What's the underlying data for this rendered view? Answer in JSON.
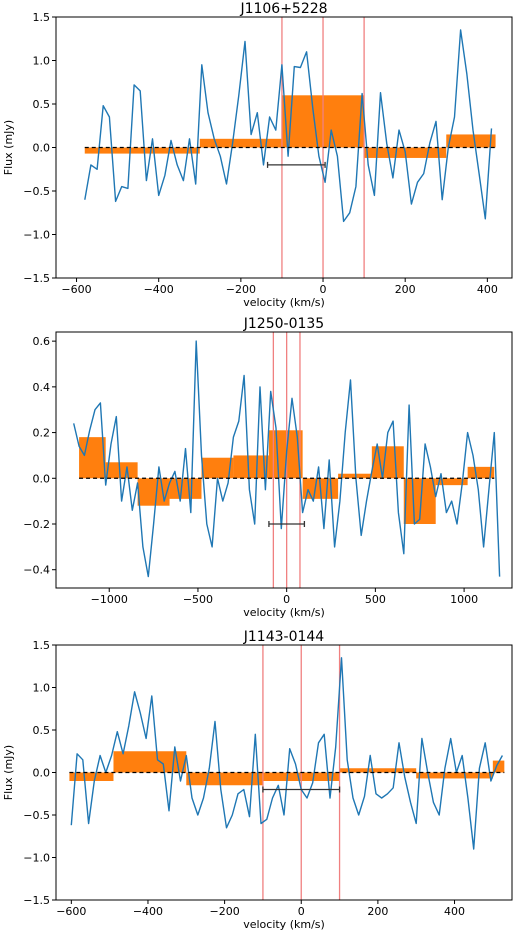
{
  "chart_data": [
    {
      "type": "line",
      "title": "J1106+5228",
      "xlabel": "velocity (km/s)",
      "ylabel": "Flux (mJy)",
      "xlim": [
        -650,
        460
      ],
      "ylim": [
        -1.5,
        1.5
      ],
      "xticks": [
        -600,
        -400,
        -200,
        0,
        200,
        400
      ],
      "xtick_labels": [
        "−600",
        "−400",
        "−200",
        "0",
        "200",
        "400"
      ],
      "yticks": [
        -1.5,
        -1.0,
        -0.5,
        0.0,
        0.5,
        1.0,
        1.5
      ],
      "ytick_labels": [
        "−1.5",
        "−1.0",
        "−0.5",
        "0.0",
        "0.5",
        "1.0",
        "1.5"
      ],
      "series": [
        {
          "style": "line",
          "color": "#1f77b4",
          "x": [
            -580,
            -565,
            -550,
            -535,
            -520,
            -505,
            -490,
            -475,
            -460,
            -445,
            -430,
            -415,
            -400,
            -385,
            -370,
            -355,
            -340,
            -325,
            -310,
            -295,
            -280,
            -265,
            -250,
            -235,
            -220,
            -205,
            -190,
            -175,
            -160,
            -145,
            -130,
            -115,
            -100,
            -85,
            -70,
            -55,
            -40,
            -25,
            -10,
            5,
            20,
            35,
            50,
            65,
            80,
            95,
            110,
            125,
            140,
            155,
            170,
            185,
            200,
            215,
            230,
            245,
            260,
            275,
            290,
            305,
            320,
            335,
            350,
            365,
            380,
            395,
            410
          ],
          "y": [
            -0.6,
            -0.2,
            -0.25,
            0.48,
            0.35,
            -0.62,
            -0.45,
            -0.47,
            0.72,
            0.65,
            -0.38,
            0.1,
            -0.55,
            -0.32,
            0.08,
            -0.2,
            -0.38,
            0.1,
            -0.42,
            0.95,
            0.4,
            0.1,
            -0.1,
            -0.42,
            0.05,
            0.6,
            1.22,
            0.15,
            0.4,
            -0.2,
            0.35,
            0.2,
            0.95,
            -0.1,
            0.93,
            0.92,
            1.1,
            0.45,
            -0.1,
            -0.4,
            0.2,
            -0.1,
            -0.85,
            -0.75,
            -0.45,
            0.62,
            -0.2,
            -0.55,
            0.63,
            0.05,
            -0.35,
            0.2,
            -0.05,
            -0.65,
            -0.4,
            -0.3,
            0.05,
            0.3,
            -0.6,
            0.0,
            0.35,
            1.35,
            0.85,
            0.2,
            -0.3,
            -0.82,
            0.22
          ]
        },
        {
          "style": "step-bar",
          "color": "#ff7f0e",
          "bins": [
            [
              -580,
              -300,
              -0.07
            ],
            [
              -300,
              -100,
              0.1
            ],
            [
              -100,
              100,
              0.6
            ],
            [
              100,
              300,
              -0.12
            ],
            [
              300,
              420,
              0.15
            ]
          ]
        }
      ],
      "vlines": [
        -100,
        0,
        100
      ],
      "hline": 0,
      "errorbar": {
        "x0": -135,
        "x1": 5,
        "y": -0.2
      }
    },
    {
      "type": "line",
      "title": "J1250-0135",
      "xlabel": "velocity (km/s)",
      "ylabel": "",
      "xlim": [
        -1300,
        1270
      ],
      "ylim": [
        -0.48,
        0.64
      ],
      "xticks": [
        -1000,
        -500,
        0,
        500,
        1000
      ],
      "xtick_labels": [
        "−1000",
        "−500",
        "0",
        "500",
        "1000"
      ],
      "yticks": [
        -0.4,
        -0.2,
        0.0,
        0.2,
        0.4,
        0.6
      ],
      "ytick_labels": [
        "−0.4",
        "−0.2",
        "0.0",
        "0.2",
        "0.4",
        "0.6"
      ],
      "series": [
        {
          "style": "line",
          "color": "#1f77b4",
          "x": [
            -1200,
            -1170,
            -1140,
            -1110,
            -1080,
            -1050,
            -1020,
            -990,
            -960,
            -930,
            -900,
            -870,
            -840,
            -810,
            -780,
            -750,
            -720,
            -690,
            -660,
            -630,
            -600,
            -570,
            -540,
            -510,
            -480,
            -450,
            -420,
            -390,
            -360,
            -330,
            -300,
            -270,
            -240,
            -210,
            -180,
            -150,
            -120,
            -90,
            -60,
            -30,
            0,
            30,
            60,
            90,
            120,
            150,
            180,
            210,
            240,
            270,
            300,
            330,
            360,
            390,
            420,
            450,
            480,
            510,
            540,
            570,
            600,
            630,
            660,
            690,
            720,
            750,
            780,
            810,
            840,
            870,
            900,
            930,
            960,
            990,
            1020,
            1050,
            1080,
            1110,
            1140,
            1170,
            1200
          ],
          "y": [
            0.24,
            0.14,
            0.1,
            0.21,
            0.3,
            0.33,
            -0.03,
            0.15,
            0.27,
            -0.1,
            0.05,
            -0.14,
            -0.02,
            -0.3,
            -0.43,
            -0.2,
            0.05,
            -0.1,
            -0.02,
            0.03,
            -0.1,
            0.13,
            -0.15,
            0.6,
            0.1,
            -0.2,
            -0.3,
            0.0,
            -0.1,
            -0.02,
            0.18,
            0.25,
            0.45,
            -0.05,
            -0.2,
            0.4,
            -0.05,
            0.38,
            0.22,
            -0.22,
            0.12,
            0.35,
            0.18,
            -0.15,
            -0.05,
            -0.1,
            0.05,
            -0.22,
            0.08,
            -0.3,
            -0.1,
            0.2,
            0.43,
            0.0,
            -0.25,
            -0.1,
            0.03,
            0.15,
            0.0,
            0.2,
            0.25,
            -0.15,
            -0.33,
            0.32,
            -0.2,
            -0.18,
            0.15,
            0.05,
            -0.08,
            0.02,
            -0.15,
            -0.1,
            -0.2,
            -0.02,
            0.2,
            0.1,
            -0.05,
            -0.3,
            -0.05,
            0.2,
            -0.43
          ]
        },
        {
          "style": "step-bar",
          "color": "#ff7f0e",
          "bins": [
            [
              -1170,
              -1020,
              0.18
            ],
            [
              -1020,
              -840,
              0.07
            ],
            [
              -840,
              -660,
              -0.12
            ],
            [
              -660,
              -480,
              -0.09
            ],
            [
              -480,
              -300,
              0.09
            ],
            [
              -300,
              -100,
              0.1
            ],
            [
              -100,
              90,
              0.21
            ],
            [
              90,
              290,
              -0.09
            ],
            [
              290,
              480,
              0.02
            ],
            [
              480,
              660,
              0.14
            ],
            [
              660,
              840,
              -0.2
            ],
            [
              840,
              1020,
              -0.03
            ],
            [
              1020,
              1170,
              0.05
            ]
          ]
        }
      ],
      "vlines": [
        -75,
        0,
        75
      ],
      "hline": 0,
      "errorbar": {
        "x0": -100,
        "x1": 100,
        "y": -0.2
      }
    },
    {
      "type": "line",
      "title": "J1143-0144",
      "xlabel": "velocity (km/s)",
      "ylabel": "Flux (mJy)",
      "xlim": [
        -640,
        550
      ],
      "ylim": [
        -1.5,
        1.5
      ],
      "xticks": [
        -600,
        -400,
        -200,
        0,
        200,
        400
      ],
      "xtick_labels": [
        "−600",
        "−400",
        "−200",
        "0",
        "200",
        "400"
      ],
      "yticks": [
        -1.5,
        -1.0,
        -0.5,
        0.0,
        0.5,
        1.0,
        1.5
      ],
      "ytick_labels": [
        "−1.5",
        "−1.0",
        "−0.5",
        "0.0",
        "0.5",
        "1.0",
        "1.5"
      ],
      "series": [
        {
          "style": "line",
          "color": "#1f77b4",
          "x": [
            -600,
            -585,
            -570,
            -555,
            -540,
            -525,
            -510,
            -495,
            -480,
            -465,
            -450,
            -435,
            -420,
            -405,
            -390,
            -375,
            -360,
            -345,
            -330,
            -315,
            -300,
            -285,
            -270,
            -255,
            -240,
            -225,
            -210,
            -195,
            -180,
            -165,
            -150,
            -135,
            -120,
            -105,
            -90,
            -75,
            -60,
            -45,
            -30,
            -15,
            0,
            15,
            30,
            45,
            60,
            75,
            90,
            105,
            120,
            135,
            150,
            165,
            180,
            195,
            210,
            225,
            240,
            255,
            270,
            285,
            300,
            315,
            330,
            345,
            360,
            375,
            390,
            405,
            420,
            435,
            450,
            465,
            480,
            495,
            510,
            525
          ],
          "y": [
            -0.62,
            0.22,
            0.15,
            -0.6,
            -0.1,
            0.2,
            0.0,
            0.2,
            0.48,
            0.22,
            0.55,
            0.95,
            0.7,
            0.4,
            0.9,
            0.15,
            0.1,
            -0.45,
            0.3,
            -0.1,
            0.2,
            -0.3,
            -0.5,
            -0.3,
            0.05,
            0.6,
            -0.2,
            -0.65,
            -0.5,
            -0.25,
            -0.2,
            -0.52,
            0.45,
            -0.6,
            -0.55,
            -0.3,
            -0.15,
            -0.5,
            0.28,
            0.1,
            -0.2,
            -0.3,
            -0.12,
            0.35,
            0.45,
            -0.3,
            0.3,
            1.35,
            0.15,
            -0.3,
            -0.5,
            -0.28,
            0.2,
            -0.25,
            -0.3,
            -0.25,
            -0.18,
            0.35,
            -0.05,
            -0.35,
            -0.6,
            0.4,
            0.0,
            -0.35,
            -0.5,
            0.05,
            0.4,
            0.0,
            0.2,
            -0.3,
            -0.9,
            0.05,
            0.35,
            -0.1,
            0.08,
            0.2
          ]
        },
        {
          "style": "step-bar",
          "color": "#ff7f0e",
          "bins": [
            [
              -605,
              -490,
              -0.1
            ],
            [
              -490,
              -300,
              0.25
            ],
            [
              -300,
              -100,
              -0.15
            ],
            [
              -100,
              100,
              -0.1
            ],
            [
              100,
              300,
              0.05
            ],
            [
              300,
              500,
              -0.07
            ],
            [
              500,
              530,
              0.14
            ]
          ]
        }
      ],
      "vlines": [
        -100,
        0,
        100
      ],
      "hline": 0,
      "errorbar": {
        "x0": -100,
        "x1": 100,
        "y": -0.2
      }
    }
  ]
}
